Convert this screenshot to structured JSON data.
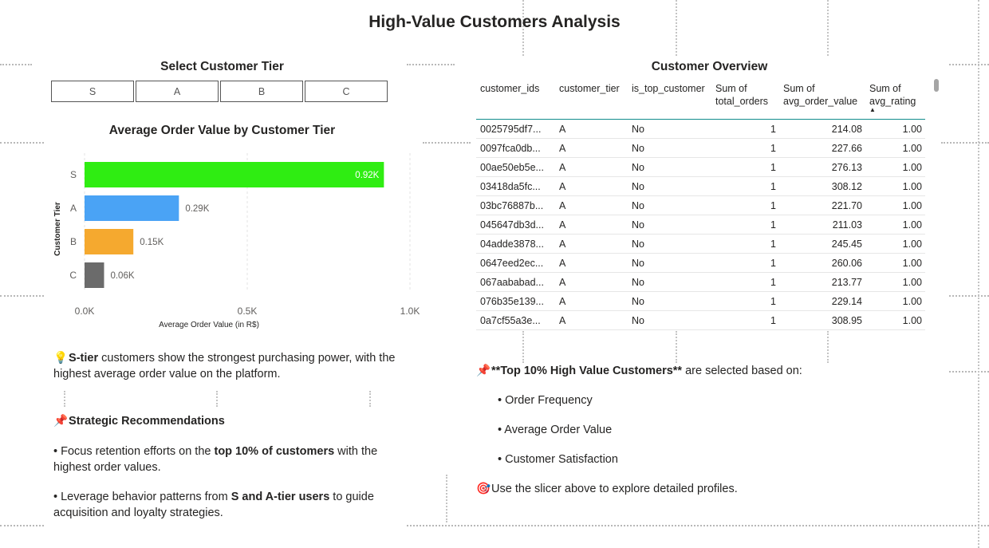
{
  "page": {
    "title": "High-Value Customers Analysis"
  },
  "slicer": {
    "title": "Select Customer Tier",
    "options": [
      "S",
      "A",
      "B",
      "C"
    ]
  },
  "chart": {
    "title": "Average Order Value by Customer Tier"
  },
  "chart_data": {
    "type": "bar",
    "orientation": "horizontal",
    "title": "Average Order Value by Customer Tier",
    "xlabel": "Average Order Value (in R$)",
    "ylabel": "Customer Tier",
    "categories": [
      "S",
      "A",
      "B",
      "C"
    ],
    "values": [
      920,
      290,
      150,
      60
    ],
    "data_labels": [
      "0.92K",
      "0.29K",
      "0.15K",
      "0.06K"
    ],
    "colors": [
      "#2fed12",
      "#4aa3f5",
      "#f5a92f",
      "#6b6b6b"
    ],
    "xlim": [
      0,
      1000
    ],
    "x_ticks": [
      "0.0K",
      "0.5K",
      "1.0K"
    ],
    "x_tick_values": [
      0,
      500,
      1000
    ],
    "grid": true,
    "legend": "none"
  },
  "left_notes": {
    "insight_icon": "lightbulb-icon",
    "insight_strong": "S-tier",
    "insight_rest": " customers show the strongest purchasing power,  with the highest average order value on the platform.",
    "rec_icon": "pushpin-icon",
    "rec_title": "Strategic Recommendations",
    "rec1_pre": "• Focus retention efforts on the ",
    "rec1_strong": "top 10% of customers",
    "rec1_post": " with the highest order values.",
    "rec2_pre": "• Leverage behavior patterns from ",
    "rec2_strong": "S and A-tier users",
    "rec2_post": " to guide acquisition and loyalty strategies."
  },
  "table": {
    "title": "Customer Overview",
    "columns": [
      "customer_ids",
      "customer_tier",
      "is_top_customer",
      "Sum of total_orders",
      "Sum of avg_order_value",
      "Sum of avg_rating"
    ],
    "rows": [
      [
        "0025795df7...",
        "A",
        "No",
        "1",
        "214.08",
        "1.00"
      ],
      [
        "0097fca0db...",
        "A",
        "No",
        "1",
        "227.66",
        "1.00"
      ],
      [
        "00ae50eb5e...",
        "A",
        "No",
        "1",
        "276.13",
        "1.00"
      ],
      [
        "03418da5fc...",
        "A",
        "No",
        "1",
        "308.12",
        "1.00"
      ],
      [
        "03bc76887b...",
        "A",
        "No",
        "1",
        "221.70",
        "1.00"
      ],
      [
        "045647db3d...",
        "A",
        "No",
        "1",
        "211.03",
        "1.00"
      ],
      [
        "04adde3878...",
        "A",
        "No",
        "1",
        "245.45",
        "1.00"
      ],
      [
        "0647eed2ec...",
        "A",
        "No",
        "1",
        "260.06",
        "1.00"
      ],
      [
        "067aababad...",
        "A",
        "No",
        "1",
        "213.77",
        "1.00"
      ],
      [
        "076b35e139...",
        "A",
        "No",
        "1",
        "229.14",
        "1.00"
      ],
      [
        "0a7cf55a3e...",
        "A",
        "No",
        "1",
        "308.95",
        "1.00"
      ]
    ]
  },
  "right_notes": {
    "top_icon": "pushpin-icon",
    "top_strong": "**Top 10% High Value Customers**",
    "top_rest": " are selected based on:",
    "criteria": [
      "• Order Frequency",
      "• Average Order Value",
      "• Customer Satisfaction"
    ],
    "explore_icon": "target-icon",
    "explore_text": "Use the slicer above to explore detailed profiles."
  }
}
